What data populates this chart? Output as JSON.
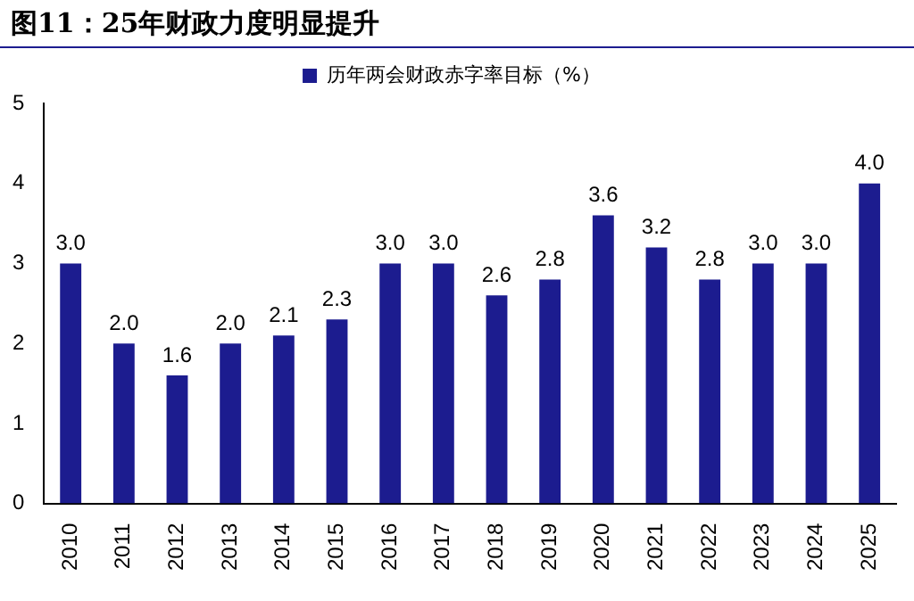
{
  "chart_data": {
    "type": "bar",
    "title": "图11：25年财政力度明显提升",
    "categories": [
      "2010",
      "2011",
      "2012",
      "2013",
      "2014",
      "2015",
      "2016",
      "2017",
      "2018",
      "2019",
      "2020",
      "2021",
      "2022",
      "2023",
      "2024",
      "2025"
    ],
    "series": [
      {
        "name": "历年两会财政赤字率目标（%）",
        "color": "#1c1c8f",
        "values": [
          3.0,
          2.0,
          1.6,
          2.0,
          2.1,
          2.3,
          3.0,
          3.0,
          2.6,
          2.8,
          3.6,
          3.2,
          2.8,
          3.0,
          3.0,
          4.0
        ],
        "value_labels": [
          "3.0",
          "2.0",
          "1.6",
          "2.0",
          "2.1",
          "2.3",
          "3.0",
          "3.0",
          "2.6",
          "2.8",
          "3.6",
          "3.2",
          "2.8",
          "3.0",
          "3.0",
          "4.0"
        ]
      }
    ],
    "ylim": [
      0,
      5
    ],
    "yticks": [
      0,
      1,
      2,
      3,
      4,
      5
    ],
    "grid": false,
    "legend": "top"
  }
}
